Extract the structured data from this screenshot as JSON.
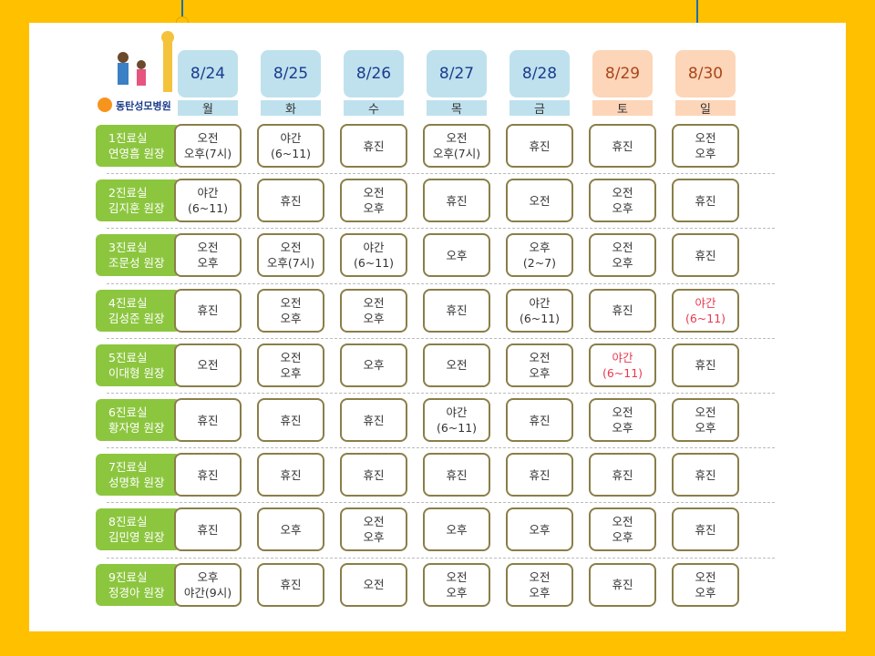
{
  "logo": {
    "name": "동탄성모병원"
  },
  "schedule": {
    "days": [
      {
        "date": "8/24",
        "weekday": "월",
        "color": "#1b3c8c",
        "bg": "#bfe1ee"
      },
      {
        "date": "8/25",
        "weekday": "화",
        "color": "#1b3c8c",
        "bg": "#bfe1ee"
      },
      {
        "date": "8/26",
        "weekday": "수",
        "color": "#1b3c8c",
        "bg": "#bfe1ee"
      },
      {
        "date": "8/27",
        "weekday": "목",
        "color": "#1b3c8c",
        "bg": "#bfe1ee"
      },
      {
        "date": "8/28",
        "weekday": "금",
        "color": "#1b3c8c",
        "bg": "#bfe1ee"
      },
      {
        "date": "8/29",
        "weekday": "토",
        "color": "#a8461a",
        "bg": "#fdd5b8"
      },
      {
        "date": "8/30",
        "weekday": "일",
        "color": "#a8461a",
        "bg": "#fdd5b8"
      }
    ],
    "rows": [
      {
        "label": [
          "1진료실",
          "연영흠 원장"
        ],
        "cells": [
          {
            "lines": [
              "오전",
              "오후(7시)"
            ]
          },
          {
            "lines": [
              "야간",
              "(6~11)"
            ]
          },
          {
            "lines": [
              "휴진"
            ]
          },
          {
            "lines": [
              "오전",
              "오후(7시)"
            ]
          },
          {
            "lines": [
              "휴진"
            ]
          },
          {
            "lines": [
              "휴진"
            ]
          },
          {
            "lines": [
              "오전",
              "오후"
            ]
          }
        ]
      },
      {
        "label": [
          "2진료실",
          "김지훈 원장"
        ],
        "cells": [
          {
            "lines": [
              "야간",
              "(6~11)"
            ]
          },
          {
            "lines": [
              "휴진"
            ]
          },
          {
            "lines": [
              "오전",
              "오후"
            ]
          },
          {
            "lines": [
              "휴진"
            ]
          },
          {
            "lines": [
              "오전"
            ]
          },
          {
            "lines": [
              "오전",
              "오후"
            ]
          },
          {
            "lines": [
              "휴진"
            ]
          }
        ]
      },
      {
        "label": [
          "3진료실",
          "조문성 원장"
        ],
        "cells": [
          {
            "lines": [
              "오전",
              "오후"
            ]
          },
          {
            "lines": [
              "오전",
              "오후(7시)"
            ]
          },
          {
            "lines": [
              "야간",
              "(6~11)"
            ]
          },
          {
            "lines": [
              "오후"
            ]
          },
          {
            "lines": [
              "오후",
              "(2~7)"
            ]
          },
          {
            "lines": [
              "오전",
              "오후"
            ]
          },
          {
            "lines": [
              "휴진"
            ]
          }
        ]
      },
      {
        "label": [
          "4진료실",
          "김성준 원장"
        ],
        "cells": [
          {
            "lines": [
              "휴진"
            ]
          },
          {
            "lines": [
              "오전",
              "오후"
            ]
          },
          {
            "lines": [
              "오전",
              "오후"
            ]
          },
          {
            "lines": [
              "휴진"
            ]
          },
          {
            "lines": [
              "야간",
              "(6~11)"
            ]
          },
          {
            "lines": [
              "휴진"
            ]
          },
          {
            "lines": [
              "야간",
              "(6~11)"
            ],
            "color": "#e8384f"
          }
        ]
      },
      {
        "label": [
          "5진료실",
          "이대형 원장"
        ],
        "cells": [
          {
            "lines": [
              "오전"
            ]
          },
          {
            "lines": [
              "오전",
              "오후"
            ]
          },
          {
            "lines": [
              "오후"
            ]
          },
          {
            "lines": [
              "오전"
            ]
          },
          {
            "lines": [
              "오전",
              "오후"
            ]
          },
          {
            "lines": [
              "야간",
              "(6~11)"
            ],
            "color": "#e8384f"
          },
          {
            "lines": [
              "휴진"
            ]
          }
        ]
      },
      {
        "label": [
          "6진료실",
          "황자영 원장"
        ],
        "cells": [
          {
            "lines": [
              "휴진"
            ]
          },
          {
            "lines": [
              "휴진"
            ]
          },
          {
            "lines": [
              "휴진"
            ]
          },
          {
            "lines": [
              "야간",
              "(6~11)"
            ]
          },
          {
            "lines": [
              "휴진"
            ]
          },
          {
            "lines": [
              "오전",
              "오후"
            ]
          },
          {
            "lines": [
              "오전",
              "오후"
            ]
          }
        ]
      },
      {
        "label": [
          "7진료실",
          "성명화 원장"
        ],
        "cells": [
          {
            "lines": [
              "휴진"
            ]
          },
          {
            "lines": [
              "휴진"
            ]
          },
          {
            "lines": [
              "휴진"
            ]
          },
          {
            "lines": [
              "휴진"
            ]
          },
          {
            "lines": [
              "휴진"
            ]
          },
          {
            "lines": [
              "휴진"
            ]
          },
          {
            "lines": [
              "휴진"
            ]
          }
        ]
      },
      {
        "label": [
          "8진료실",
          "김민영 원장"
        ],
        "cells": [
          {
            "lines": [
              "휴진"
            ]
          },
          {
            "lines": [
              "오후"
            ]
          },
          {
            "lines": [
              "오전",
              "오후"
            ]
          },
          {
            "lines": [
              "오후"
            ]
          },
          {
            "lines": [
              "오후"
            ]
          },
          {
            "lines": [
              "오전",
              "오후"
            ]
          },
          {
            "lines": [
              "휴진"
            ]
          }
        ]
      },
      {
        "label": [
          "9진료실",
          "정경아 원장"
        ],
        "cells": [
          {
            "lines": [
              "오후",
              "야간(9시)"
            ]
          },
          {
            "lines": [
              "휴진"
            ]
          },
          {
            "lines": [
              "오전"
            ]
          },
          {
            "lines": [
              "오전",
              "오후"
            ]
          },
          {
            "lines": [
              "오전",
              "오후"
            ]
          },
          {
            "lines": [
              "휴진"
            ]
          },
          {
            "lines": [
              "오전",
              "오후"
            ]
          }
        ]
      }
    ]
  }
}
